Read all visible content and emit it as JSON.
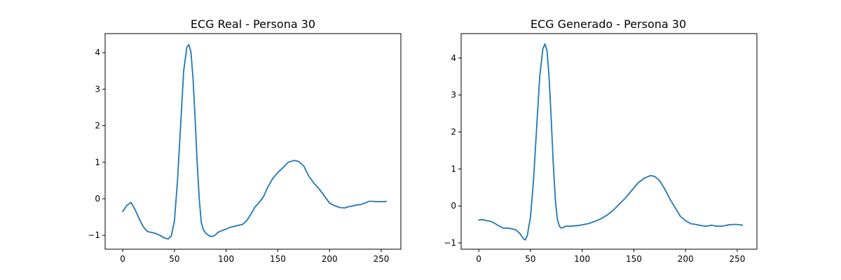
{
  "colors": {
    "series": "#1f77b4",
    "axes": "#000000",
    "background": "#ffffff"
  },
  "chart_data": [
    {
      "type": "line",
      "title": "ECG Real - Persona 30",
      "xlabel": "",
      "ylabel": "",
      "xlim": [
        -17,
        269
      ],
      "ylim": [
        -1.38,
        4.52
      ],
      "xticks": [
        0,
        50,
        100,
        150,
        200,
        250
      ],
      "yticks": [
        -1,
        0,
        1,
        2,
        3,
        4
      ],
      "grid": false,
      "series": [
        {
          "x": [
            0,
            4,
            8,
            12,
            16,
            20,
            24,
            28,
            32,
            36,
            40,
            44,
            47,
            50,
            53,
            56,
            59,
            62,
            64,
            66,
            68,
            70,
            72,
            74,
            76,
            78,
            80,
            82,
            84,
            86,
            88,
            90,
            92,
            96,
            100,
            104,
            110,
            116,
            120,
            124,
            128,
            132,
            136,
            140,
            145,
            150,
            155,
            160,
            166,
            170,
            175,
            180,
            185,
            190,
            195,
            200,
            205,
            210,
            215,
            218,
            222,
            226,
            230,
            234,
            238,
            242,
            246,
            250,
            255
          ],
          "y": [
            -0.35,
            -0.18,
            -0.1,
            -0.3,
            -0.55,
            -0.77,
            -0.9,
            -0.92,
            -0.95,
            -1.0,
            -1.07,
            -1.1,
            -1.02,
            -0.6,
            0.5,
            2.0,
            3.5,
            4.15,
            4.22,
            4.0,
            3.3,
            2.2,
            1.0,
            0.0,
            -0.65,
            -0.85,
            -0.93,
            -0.98,
            -1.02,
            -1.03,
            -1.02,
            -0.98,
            -0.92,
            -0.87,
            -0.83,
            -0.78,
            -0.74,
            -0.7,
            -0.6,
            -0.42,
            -0.22,
            -0.1,
            0.05,
            0.3,
            0.55,
            0.72,
            0.85,
            1.0,
            1.05,
            1.02,
            0.9,
            0.62,
            0.42,
            0.27,
            0.08,
            -0.12,
            -0.19,
            -0.24,
            -0.25,
            -0.22,
            -0.2,
            -0.17,
            -0.16,
            -0.12,
            -0.07,
            -0.07,
            -0.08,
            -0.08,
            -0.07
          ]
        }
      ]
    },
    {
      "type": "line",
      "title": "ECG Generado - Persona 30",
      "xlabel": "",
      "ylabel": "",
      "xlim": [
        -17,
        269
      ],
      "ylim": [
        -1.17,
        4.66
      ],
      "xticks": [
        0,
        50,
        100,
        150,
        200,
        250
      ],
      "yticks": [
        -1,
        0,
        1,
        2,
        3,
        4
      ],
      "grid": false,
      "series": [
        {
          "x": [
            0,
            4,
            8,
            12,
            16,
            20,
            24,
            28,
            32,
            36,
            40,
            43,
            45,
            47,
            50,
            53,
            56,
            59,
            62,
            64,
            66,
            68,
            70,
            72,
            74,
            76,
            78,
            80,
            82,
            84,
            88,
            92,
            96,
            100,
            106,
            112,
            118,
            124,
            130,
            136,
            142,
            148,
            154,
            160,
            166,
            170,
            175,
            180,
            185,
            190,
            195,
            200,
            205,
            210,
            215,
            220,
            225,
            230,
            235,
            240,
            245,
            250,
            255
          ],
          "y": [
            -0.38,
            -0.37,
            -0.4,
            -0.42,
            -0.48,
            -0.55,
            -0.6,
            -0.6,
            -0.62,
            -0.65,
            -0.75,
            -0.88,
            -0.92,
            -0.8,
            -0.3,
            0.7,
            2.1,
            3.5,
            4.25,
            4.38,
            4.2,
            3.5,
            2.4,
            1.2,
            0.2,
            -0.35,
            -0.55,
            -0.6,
            -0.58,
            -0.55,
            -0.55,
            -0.54,
            -0.53,
            -0.51,
            -0.48,
            -0.42,
            -0.35,
            -0.25,
            -0.12,
            0.05,
            0.22,
            0.42,
            0.62,
            0.75,
            0.82,
            0.8,
            0.68,
            0.45,
            0.18,
            -0.05,
            -0.28,
            -0.4,
            -0.48,
            -0.5,
            -0.53,
            -0.55,
            -0.52,
            -0.55,
            -0.55,
            -0.52,
            -0.5,
            -0.5,
            -0.52
          ]
        }
      ]
    }
  ]
}
